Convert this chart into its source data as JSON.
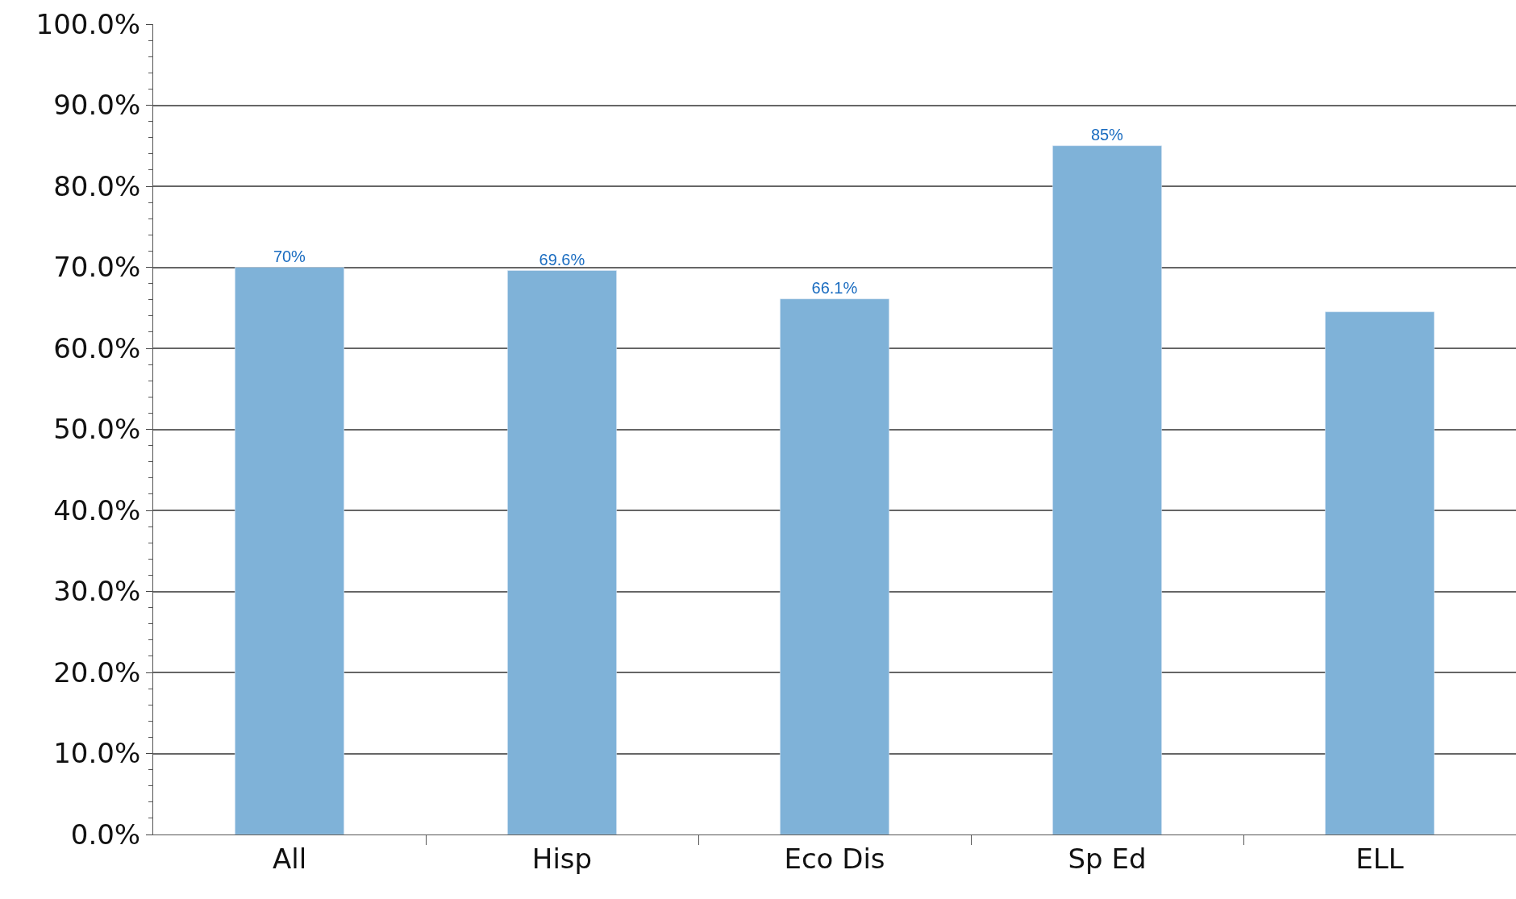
{
  "chart_data": {
    "type": "bar",
    "categories": [
      "All",
      "Hisp",
      "Eco Dis",
      "Sp Ed",
      "ELL"
    ],
    "values": [
      70,
      69.6,
      66.1,
      85,
      64.5
    ],
    "value_labels": [
      "70%",
      "69.6%",
      "66.1%",
      "85%",
      null
    ],
    "color": "#7fb2d8",
    "ylim": [
      0,
      100
    ],
    "yticks": [
      {
        "value": 0,
        "label": "0.0%"
      },
      {
        "value": 10,
        "label": "10.0%"
      },
      {
        "value": 20,
        "label": "20.0%"
      },
      {
        "value": 30,
        "label": "30.0%"
      },
      {
        "value": 40,
        "label": "40.0%"
      },
      {
        "value": 50,
        "label": "50.0%"
      },
      {
        "value": 60,
        "label": "60.0%"
      },
      {
        "value": 70,
        "label": "70.0%"
      },
      {
        "value": 80,
        "label": "80.0%"
      },
      {
        "value": 90,
        "label": "90.0%"
      },
      {
        "value": 100,
        "label": "100.0%"
      }
    ],
    "grid": "y",
    "legend": false
  }
}
